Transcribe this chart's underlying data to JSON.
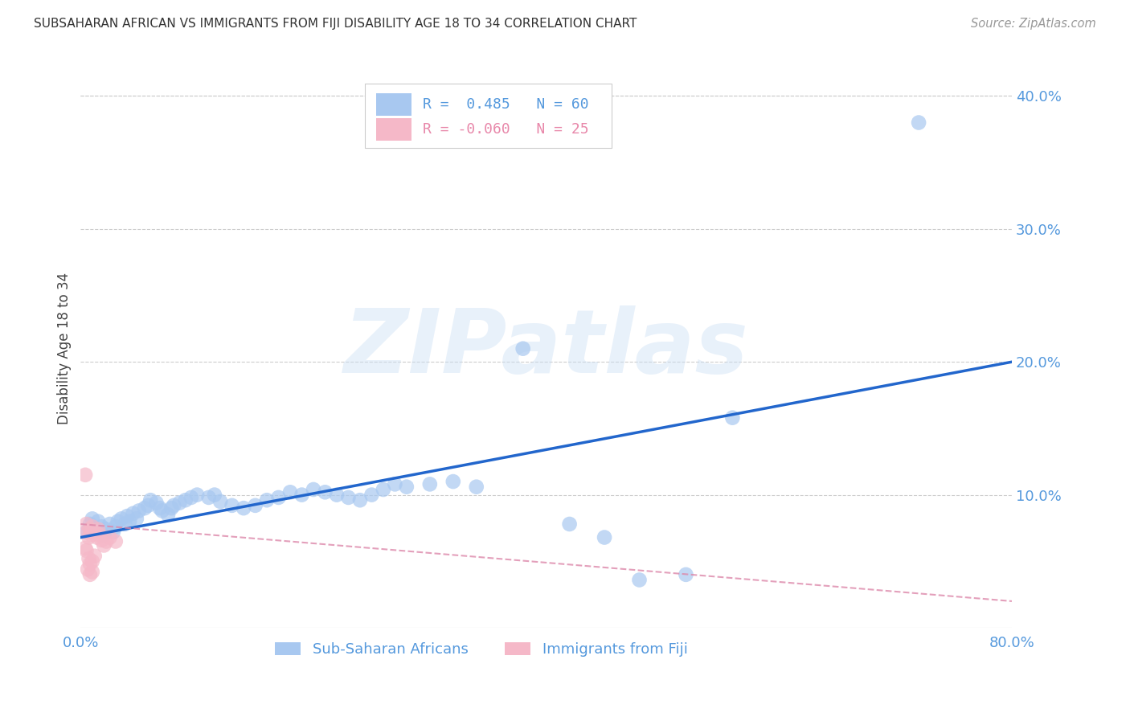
{
  "title": "SUBSAHARAN AFRICAN VS IMMIGRANTS FROM FIJI DISABILITY AGE 18 TO 34 CORRELATION CHART",
  "source": "Source: ZipAtlas.com",
  "ylabel": "Disability Age 18 to 34",
  "xlim": [
    0.0,
    0.8
  ],
  "ylim": [
    0.0,
    0.42
  ],
  "xticks": [
    0.0,
    0.1,
    0.2,
    0.3,
    0.4,
    0.5,
    0.6,
    0.7,
    0.8
  ],
  "yticks": [
    0.0,
    0.1,
    0.2,
    0.3,
    0.4
  ],
  "watermark": "ZIPatlas",
  "blue_color": "#a8c8f0",
  "pink_color": "#f5b8c8",
  "line_blue": "#2266cc",
  "line_pink": "#dd88aa",
  "blue_scatter": [
    [
      0.005,
      0.072
    ],
    [
      0.008,
      0.078
    ],
    [
      0.01,
      0.082
    ],
    [
      0.012,
      0.075
    ],
    [
      0.015,
      0.08
    ],
    [
      0.018,
      0.076
    ],
    [
      0.02,
      0.07
    ],
    [
      0.022,
      0.074
    ],
    [
      0.025,
      0.078
    ],
    [
      0.028,
      0.072
    ],
    [
      0.03,
      0.076
    ],
    [
      0.032,
      0.08
    ],
    [
      0.035,
      0.082
    ],
    [
      0.038,
      0.078
    ],
    [
      0.04,
      0.084
    ],
    [
      0.042,
      0.08
    ],
    [
      0.045,
      0.086
    ],
    [
      0.048,
      0.082
    ],
    [
      0.05,
      0.088
    ],
    [
      0.055,
      0.09
    ],
    [
      0.058,
      0.092
    ],
    [
      0.06,
      0.096
    ],
    [
      0.065,
      0.094
    ],
    [
      0.068,
      0.09
    ],
    [
      0.07,
      0.088
    ],
    [
      0.075,
      0.085
    ],
    [
      0.078,
      0.09
    ],
    [
      0.08,
      0.092
    ],
    [
      0.085,
      0.094
    ],
    [
      0.09,
      0.096
    ],
    [
      0.095,
      0.098
    ],
    [
      0.1,
      0.1
    ],
    [
      0.11,
      0.098
    ],
    [
      0.115,
      0.1
    ],
    [
      0.12,
      0.095
    ],
    [
      0.13,
      0.092
    ],
    [
      0.14,
      0.09
    ],
    [
      0.15,
      0.092
    ],
    [
      0.16,
      0.096
    ],
    [
      0.17,
      0.098
    ],
    [
      0.18,
      0.102
    ],
    [
      0.19,
      0.1
    ],
    [
      0.2,
      0.104
    ],
    [
      0.21,
      0.102
    ],
    [
      0.22,
      0.1
    ],
    [
      0.23,
      0.098
    ],
    [
      0.24,
      0.096
    ],
    [
      0.25,
      0.1
    ],
    [
      0.26,
      0.104
    ],
    [
      0.27,
      0.108
    ],
    [
      0.28,
      0.106
    ],
    [
      0.3,
      0.108
    ],
    [
      0.32,
      0.11
    ],
    [
      0.34,
      0.106
    ],
    [
      0.38,
      0.21
    ],
    [
      0.42,
      0.078
    ],
    [
      0.45,
      0.068
    ],
    [
      0.48,
      0.036
    ],
    [
      0.52,
      0.04
    ],
    [
      0.56,
      0.158
    ],
    [
      0.72,
      0.38
    ]
  ],
  "pink_scatter": [
    [
      0.004,
      0.115
    ],
    [
      0.005,
      0.078
    ],
    [
      0.006,
      0.072
    ],
    [
      0.007,
      0.068
    ],
    [
      0.008,
      0.074
    ],
    [
      0.009,
      0.07
    ],
    [
      0.01,
      0.076
    ],
    [
      0.012,
      0.072
    ],
    [
      0.014,
      0.068
    ],
    [
      0.015,
      0.074
    ],
    [
      0.016,
      0.07
    ],
    [
      0.018,
      0.066
    ],
    [
      0.02,
      0.062
    ],
    [
      0.022,
      0.065
    ],
    [
      0.005,
      0.058
    ],
    [
      0.007,
      0.052
    ],
    [
      0.008,
      0.048
    ],
    [
      0.01,
      0.05
    ],
    [
      0.012,
      0.054
    ],
    [
      0.006,
      0.044
    ],
    [
      0.008,
      0.04
    ],
    [
      0.01,
      0.042
    ],
    [
      0.025,
      0.068
    ],
    [
      0.03,
      0.065
    ],
    [
      0.004,
      0.06
    ]
  ],
  "blue_trendline": [
    [
      0.0,
      0.068
    ],
    [
      0.8,
      0.2
    ]
  ],
  "pink_trendline": [
    [
      0.0,
      0.078
    ],
    [
      0.8,
      0.02
    ]
  ]
}
